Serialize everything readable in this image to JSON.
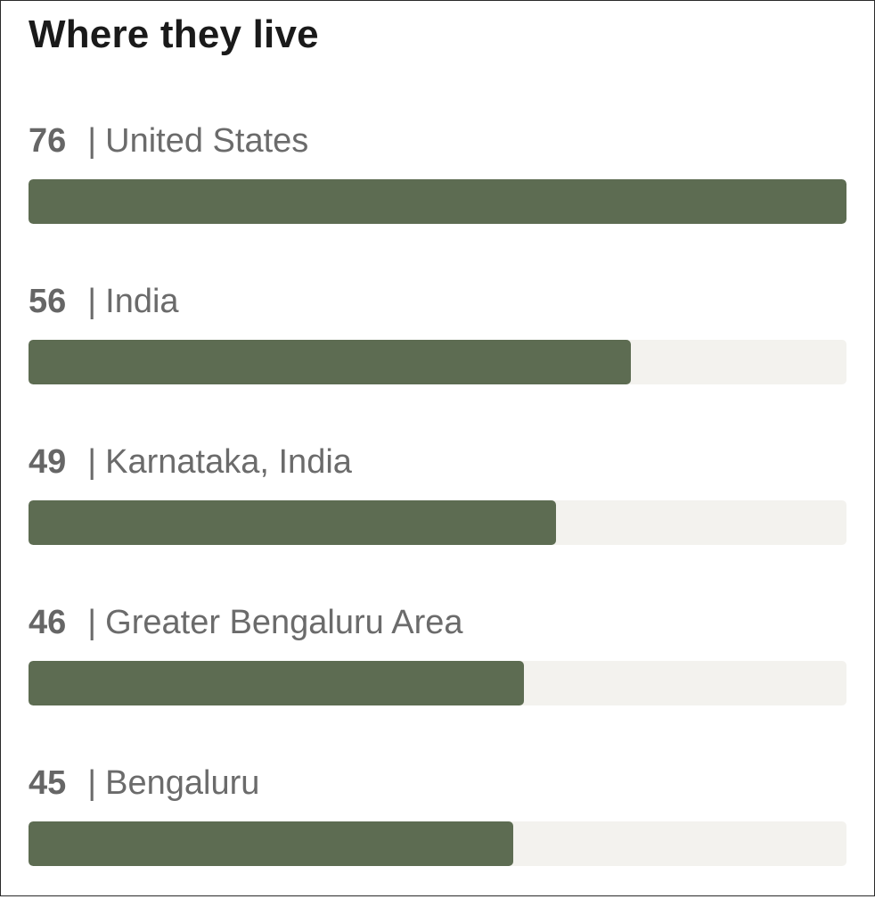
{
  "title": "Where they live",
  "colors": {
    "bar_fill": "#5d6c52",
    "bar_track": "#f3f2ee",
    "label_text": "#6b6b6b",
    "title_text": "#1a1a1a"
  },
  "chart_data": {
    "type": "bar",
    "orientation": "horizontal",
    "title": "Where they live",
    "categories": [
      "United States",
      "India",
      "Karnataka, India",
      "Greater Bengaluru Area",
      "Bengaluru"
    ],
    "values": [
      76,
      56,
      49,
      46,
      45
    ],
    "xlim": [
      0,
      76
    ],
    "separator": "|",
    "grid": false,
    "legend": "none"
  }
}
